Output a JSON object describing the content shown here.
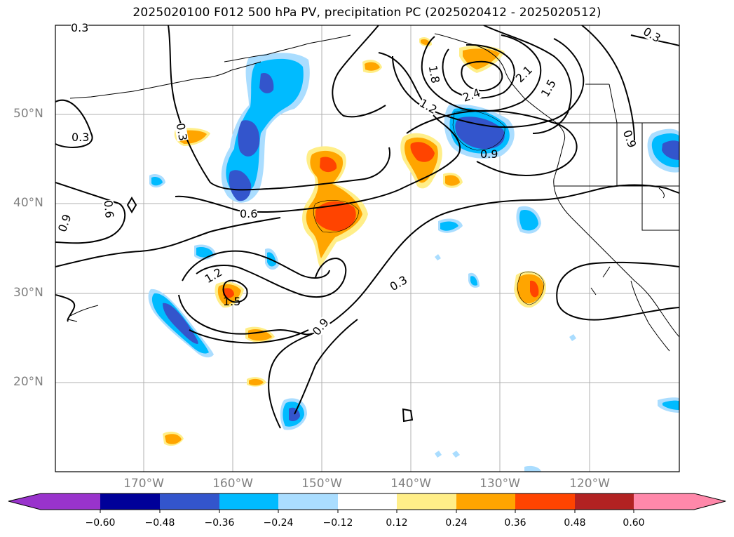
{
  "title": "2025020100 F012 500 hPa PV, precipitation PC (2025020412 - 2025020512)",
  "map": {
    "lat_labels": [
      "50°N",
      "40°N",
      "30°N",
      "20°N"
    ],
    "lon_labels": [
      "170°W",
      "160°W",
      "150°W",
      "140°W",
      "130°W",
      "120°W"
    ],
    "contour_labels": [
      "0.3",
      "0.3",
      "0.3",
      "0.3",
      "0.6",
      "0.6",
      "0.9",
      "0.9",
      "0.9",
      "0.9",
      "1.2",
      "1.2",
      "1.5",
      "1.5",
      "1.8",
      "2.1",
      "2.4",
      "0.3"
    ],
    "colors": {
      "neg_extend": "#9933cc",
      "neg_060": "#000099",
      "neg_048": "#3355cc",
      "neg_036": "#00bbff",
      "neg_024": "#aaddff",
      "pos_012": "#ffee88",
      "pos_024": "#ffa500",
      "pos_036": "#ff4400",
      "pos_048": "#b22222",
      "pos_extend": "#ff88aa"
    }
  },
  "colorbar": {
    "ticks": [
      "−0.60",
      "−0.48",
      "−0.36",
      "−0.24",
      "−0.12",
      "0.12",
      "0.24",
      "0.36",
      "0.48",
      "0.60"
    ]
  }
}
